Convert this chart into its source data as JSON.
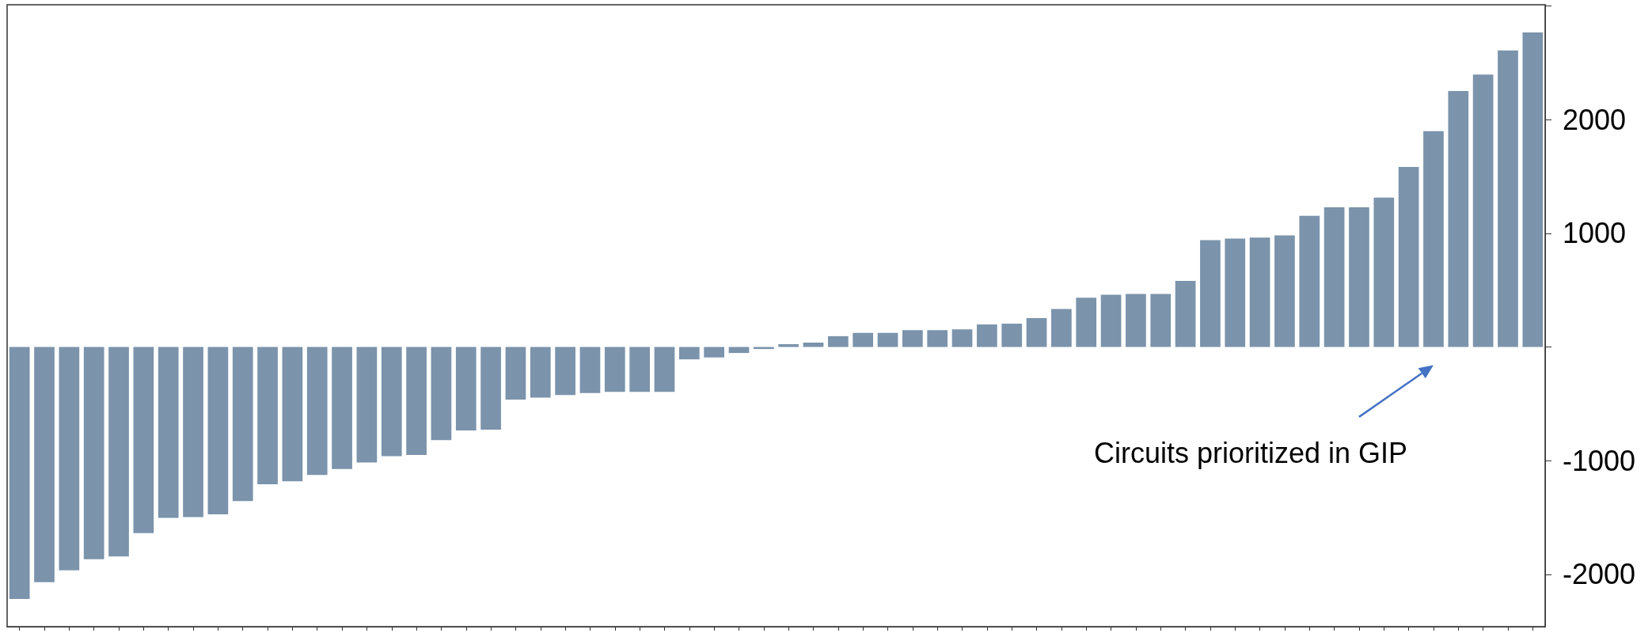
{
  "chart_data": {
    "type": "bar",
    "categories": [
      null,
      null,
      null,
      null,
      null,
      null,
      null,
      null,
      null,
      null,
      null,
      null,
      null,
      null,
      null,
      null,
      null,
      null,
      null,
      null,
      null,
      null,
      null,
      null,
      null,
      null,
      null,
      null,
      null,
      null,
      null,
      null,
      null,
      null,
      null,
      null,
      null,
      null,
      null,
      null,
      null,
      null,
      null,
      null,
      null,
      null,
      null,
      null,
      null,
      null,
      null,
      null,
      null,
      null,
      null,
      null,
      null,
      null,
      null,
      null,
      null,
      null
    ],
    "values": [
      -2216,
      -2068,
      -1965,
      -1867,
      -1842,
      -1637,
      -1503,
      -1496,
      -1471,
      -1355,
      -1207,
      -1182,
      -1126,
      -1073,
      -1016,
      -960,
      -949,
      -819,
      -734,
      -727,
      -462,
      -445,
      -423,
      -406,
      -395,
      -395,
      -395,
      -109,
      -92,
      -53,
      -18,
      25,
      39,
      95,
      124,
      124,
      148,
      148,
      155,
      198,
      205,
      254,
      335,
      434,
      459,
      466,
      466,
      582,
      939,
      953,
      963,
      981,
      1154,
      1228,
      1228,
      1313,
      1584,
      1898,
      2251,
      2396,
      2608,
      2766
    ],
    "color": "#7b93ab",
    "ylim": [
      -2460,
      3010
    ],
    "yticks": [
      {
        "value": 3000,
        "label": null
      },
      2000,
      1000,
      {
        "value": 0,
        "label": null
      },
      -1000,
      -2000
    ],
    "grid": false,
    "annotations": [
      "Circuits prioritized in GIP"
    ]
  }
}
